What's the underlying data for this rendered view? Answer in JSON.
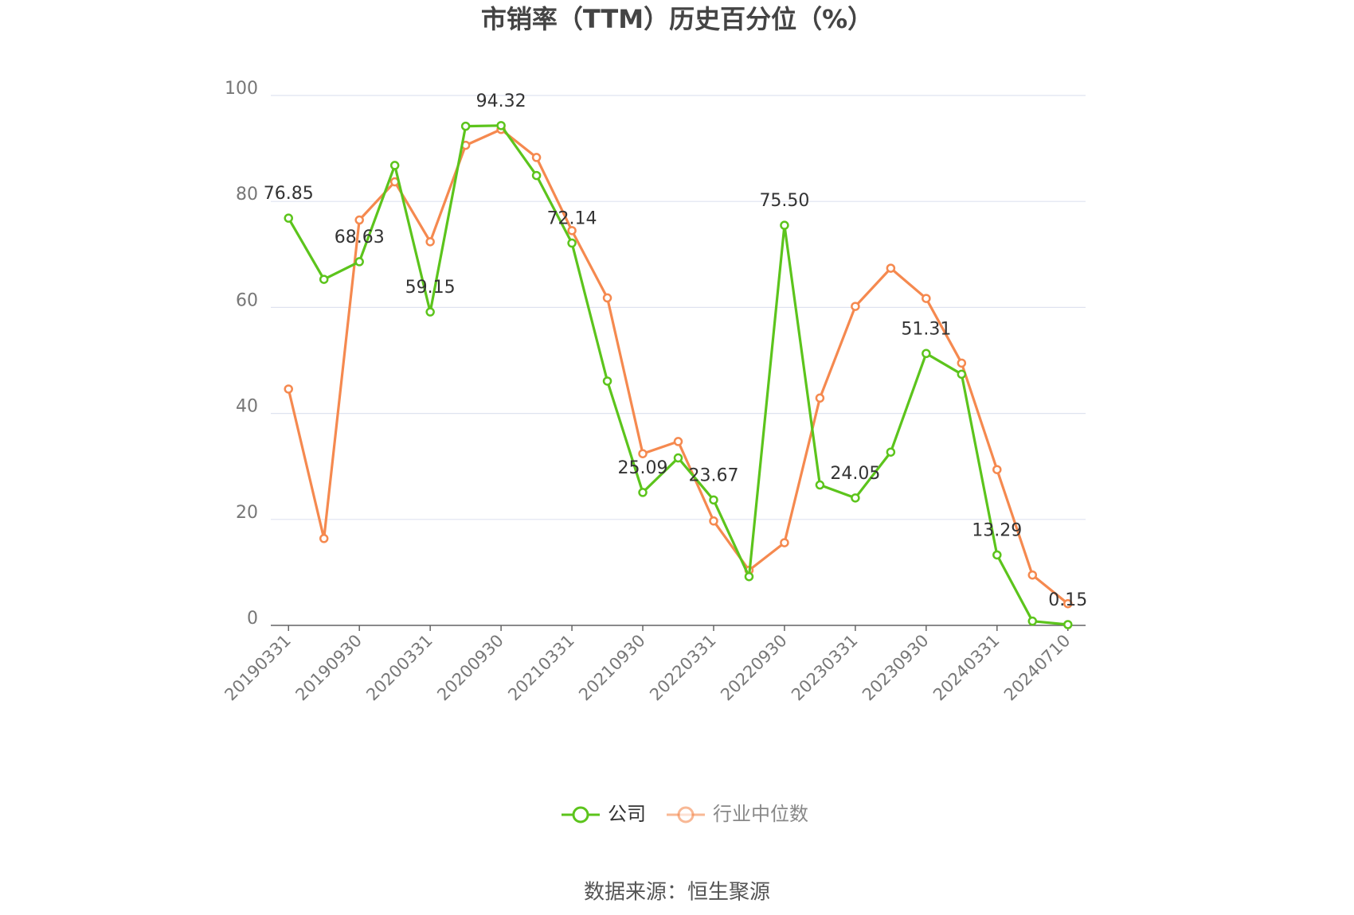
{
  "chart_data": {
    "type": "line",
    "title": "市销率（TTM）历史百分位（%）",
    "categories": [
      "20190331",
      null,
      "20190930",
      null,
      "20200331",
      null,
      "20200930",
      null,
      "20210331",
      null,
      "20210930",
      null,
      "20220331",
      null,
      "20220930",
      null,
      "20230331",
      null,
      "20230930",
      null,
      "20240331",
      null,
      "20240710"
    ],
    "series": [
      {
        "name": "公司",
        "color": "#5cc41c",
        "values": [
          76.85,
          65.3,
          68.63,
          86.8,
          59.15,
          94.2,
          94.32,
          84.9,
          72.14,
          46.1,
          25.09,
          31.6,
          23.67,
          9.2,
          75.5,
          26.5,
          24.05,
          32.7,
          51.31,
          47.4,
          13.29,
          0.8,
          0.15
        ],
        "value_labels": [
          "76.85",
          null,
          "68.63",
          null,
          "59.15",
          null,
          "94.32",
          null,
          "72.14",
          null,
          "25.09",
          null,
          "23.67",
          null,
          "75.50",
          null,
          "24.05",
          null,
          "51.31",
          null,
          "13.29",
          null,
          "0.15"
        ]
      },
      {
        "name": "行业中位数",
        "color": "#f5894f",
        "values": [
          44.6,
          16.4,
          76.5,
          83.7,
          72.4,
          90.6,
          93.6,
          88.3,
          74.5,
          61.8,
          32.4,
          34.7,
          19.7,
          10.4,
          15.6,
          42.9,
          60.2,
          67.4,
          61.7,
          49.5,
          29.4,
          9.5,
          4.1
        ]
      }
    ],
    "ylim": [
      0,
      100
    ],
    "yticks": [
      0,
      20,
      40,
      60,
      80,
      100
    ],
    "grid": true,
    "source": "数据来源：恒生聚源"
  }
}
